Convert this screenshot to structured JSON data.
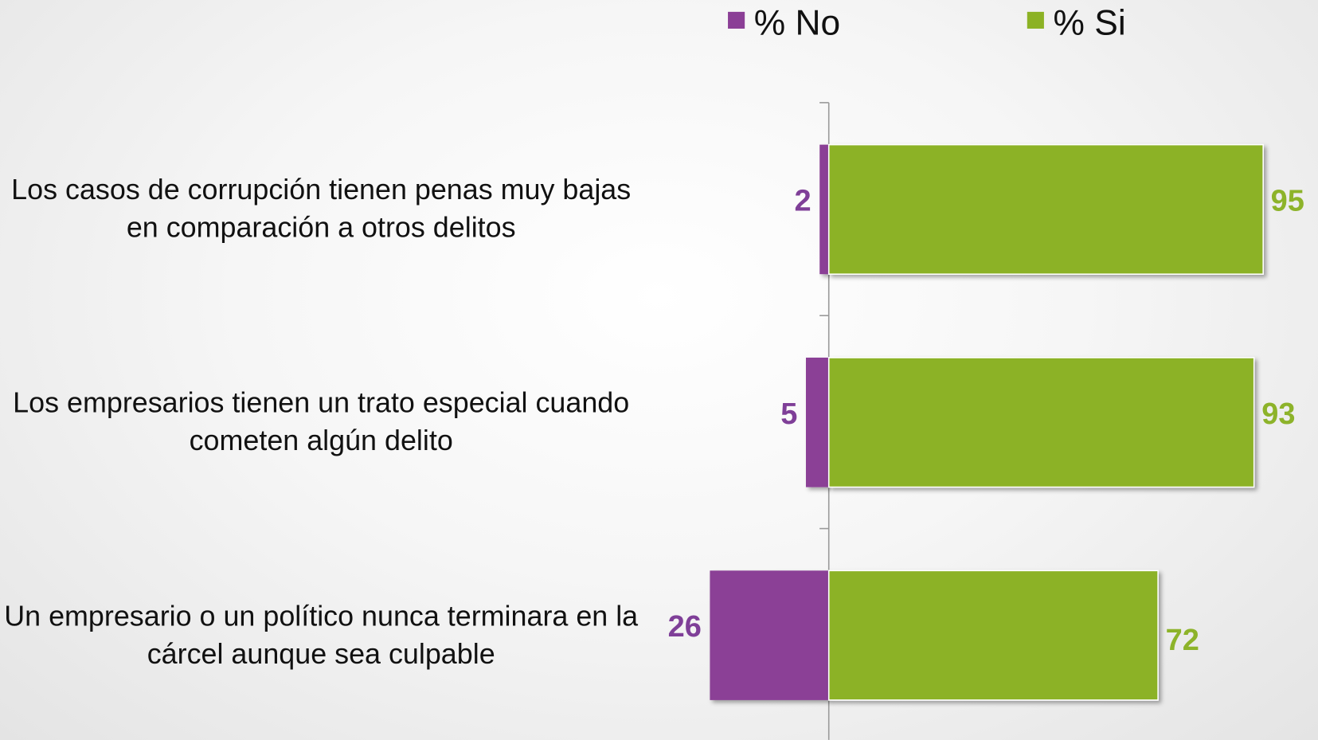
{
  "chart_data": {
    "type": "bar",
    "orientation": "horizontal",
    "diverging": true,
    "categories": [
      "Los casos de corrupción tienen penas muy bajas en comparación a otros delitos",
      "Los empresarios tienen un trato especial cuando cometen algún delito",
      "Un empresario o un político nunca terminara en la cárcel aunque sea culpable"
    ],
    "series": [
      {
        "name": "% No",
        "color": "#8b3f96",
        "label_color": "#7f3f98",
        "values": [
          2,
          5,
          26
        ]
      },
      {
        "name": "% Si",
        "color": "#8cb225",
        "label_color": "#8db32a",
        "values": [
          95,
          93,
          72
        ]
      }
    ],
    "legend": "top"
  }
}
